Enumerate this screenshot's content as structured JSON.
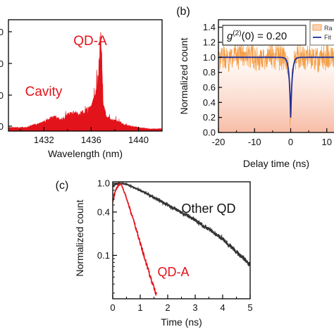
{
  "chart_data": [
    {
      "panel": "",
      "type": "area",
      "xlabel": "Wavelength (nm)",
      "ylabel": "",
      "xlim": [
        1429,
        1442
      ],
      "ylim": [
        0,
        1
      ],
      "xticks": [
        1432,
        1436,
        1440
      ],
      "ytick_fragments": [
        "0",
        "0",
        "0",
        "0"
      ],
      "color": "#e3131b",
      "annotations": [
        {
          "text": "QD-A",
          "color": "#e3131b"
        },
        {
          "text": "Cavity",
          "color": "#e3131b"
        }
      ],
      "x": [
        1429.0,
        1430.5,
        1431.0,
        1431.5,
        1432.0,
        1432.5,
        1433.0,
        1433.5,
        1434.0,
        1434.5,
        1435.0,
        1435.5,
        1436.0,
        1436.3,
        1436.5,
        1436.7,
        1436.8,
        1436.9,
        1437.0,
        1437.1,
        1437.3,
        1437.6,
        1438.0,
        1438.5,
        1439.0,
        1440.0,
        1441.0,
        1442.0
      ],
      "values": [
        0.03,
        0.03,
        0.05,
        0.06,
        0.08,
        0.11,
        0.12,
        0.1,
        0.14,
        0.16,
        0.15,
        0.17,
        0.2,
        0.3,
        0.35,
        0.62,
        0.92,
        0.62,
        0.3,
        0.2,
        0.12,
        0.1,
        0.09,
        0.07,
        0.05,
        0.03,
        0.02,
        0.02
      ]
    },
    {
      "panel": "(b)",
      "type": "line",
      "xlabel": "Delay time (ns)",
      "ylabel": "Normalized count",
      "xlim": [
        -20,
        12
      ],
      "ylim": [
        0,
        1.5
      ],
      "xticks": [
        -20,
        -10,
        0,
        10
      ],
      "yticks": [
        0.0,
        0.2,
        0.4,
        0.6,
        0.8,
        1.0,
        1.2,
        1.4
      ],
      "annotation": {
        "prefix": "g",
        "superscript": "(2)",
        "suffix": "(0) = 0.20",
        "value": 0.2
      },
      "legend": {
        "position": "top-right",
        "entries": [
          "Ra",
          "Fit"
        ]
      },
      "series": [
        {
          "name": "Ra",
          "color": "#f5a04a",
          "mean": 1.0,
          "noise": 0.18
        },
        {
          "name": "Fit",
          "color": "#1f2f9c",
          "baseline": 1.0,
          "dip_min": 0.2,
          "dip_center": 0,
          "dip_width_ns": 0.9
        }
      ]
    },
    {
      "panel": "(c)",
      "type": "line",
      "xlabel": "Time (ns)",
      "ylabel": "Normalized count",
      "xlim": [
        0,
        5
      ],
      "ylim": [
        0.025,
        1.05
      ],
      "yscale": "log",
      "xticks": [
        0,
        1,
        2,
        3,
        4,
        5
      ],
      "yticks": [
        1.0,
        0.4,
        0.1
      ],
      "ytick_labels": [
        "1.0",
        "0.4",
        "0.1"
      ],
      "series": [
        {
          "name": "Other QD",
          "color": "#333333",
          "peak_time": 0.3,
          "x": [
            0.0,
            0.1,
            0.2,
            0.3,
            0.5,
            1.0,
            2.0,
            3.0,
            4.0,
            5.0
          ],
          "values": [
            0.93,
            0.97,
            0.99,
            1.0,
            0.97,
            0.8,
            0.5,
            0.31,
            0.17,
            0.075
          ]
        },
        {
          "name": "QD-A",
          "color": "#e3131b",
          "peak_time": 0.3,
          "x": [
            0.0,
            0.1,
            0.2,
            0.3,
            0.5,
            0.8,
            1.1,
            1.4,
            1.6
          ],
          "values": [
            0.55,
            0.8,
            0.93,
            1.0,
            0.62,
            0.27,
            0.11,
            0.046,
            0.028
          ]
        }
      ]
    }
  ]
}
